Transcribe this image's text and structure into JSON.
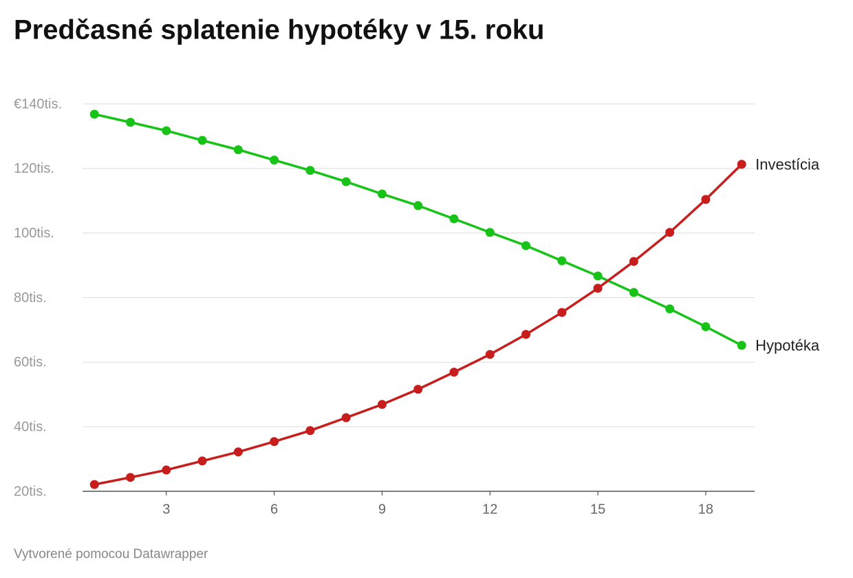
{
  "chart_data": {
    "type": "line",
    "title": "Predčasné splatenie hypotéky v 15. roku",
    "footer": "Vytvorené pomocou Datawrapper",
    "x": [
      1,
      2,
      3,
      4,
      5,
      6,
      7,
      8,
      9,
      10,
      11,
      12,
      13,
      14,
      15,
      16,
      17,
      18,
      19
    ],
    "series": [
      {
        "name": "Hypotéka",
        "color": "#16c316",
        "values": [
          136800,
          134300,
          131700,
          128700,
          125800,
          122600,
          119400,
          115900,
          112100,
          108500,
          104400,
          100200,
          96100,
          91400,
          86700,
          81600,
          76500,
          71000,
          65200
        ]
      },
      {
        "name": "Investícia",
        "color": "#c71e1d",
        "values": [
          22100,
          24300,
          26600,
          29400,
          32200,
          35400,
          38800,
          42800,
          46900,
          51600,
          56900,
          62400,
          68600,
          75400,
          82900,
          91200,
          100200,
          110400,
          121300
        ]
      }
    ],
    "xlim": [
      0.67,
      19.36
    ],
    "xticks": [
      3,
      6,
      9,
      12,
      15,
      18
    ],
    "ylim": [
      20000,
      140000
    ],
    "yticks": [
      {
        "value": 20000,
        "label": "20tis."
      },
      {
        "value": 40000,
        "label": "40tis."
      },
      {
        "value": 60000,
        "label": "60tis."
      },
      {
        "value": 80000,
        "label": "80tis."
      },
      {
        "value": 100000,
        "label": "100tis."
      },
      {
        "value": 120000,
        "label": "120tis."
      },
      {
        "value": 140000,
        "label": "€140tis."
      }
    ],
    "grid": true
  }
}
